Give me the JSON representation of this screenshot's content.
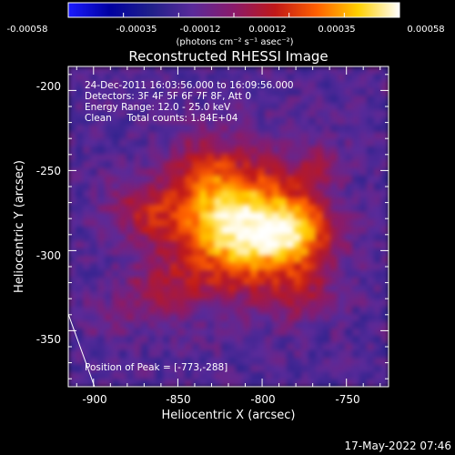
{
  "colorbar": {
    "tick_labels": [
      "-0.00058",
      "-0.00035",
      "-0.00012",
      "0.00012",
      "0.00035",
      "0.00058"
    ],
    "units": "(photons cm⁻² s⁻¹ asec⁻²)",
    "colormap": [
      "#1a1aff",
      "#0000a0",
      "#20208a",
      "#5a2a9a",
      "#8a1a6a",
      "#c01818",
      "#ff6000",
      "#ffd000",
      "#ffffff"
    ]
  },
  "title": "Reconstructed RHESSI Image",
  "info": {
    "time_range": "24-Dec-2011 16:03:56.000 to 16:09:56.000",
    "detectors": "Detectors: 3F 4F 5F 6F 7F 8F, Att 0",
    "energy_range": "Energy Range: 12.0 - 25.0 keV",
    "method_counts": "Clean     Total counts: 1.84E+04"
  },
  "peak_label": "Position of Peak = [-773,-288]",
  "x_axis": {
    "label": "Heliocentric X (arcsec)",
    "range": [
      -915,
      -725
    ],
    "ticks": [
      -900,
      -850,
      -800,
      -750
    ],
    "tick_labels": [
      "-900",
      "-850",
      "-800",
      "-750"
    ]
  },
  "y_axis": {
    "label": "Heliocentric Y (arcsec)",
    "range": [
      -385,
      -185
    ],
    "ticks": [
      -200,
      -250,
      -300,
      -350
    ],
    "tick_labels": [
      "-200",
      "-250",
      "-300",
      "-350"
    ]
  },
  "timestamp": "17-May-2022 07:46"
}
